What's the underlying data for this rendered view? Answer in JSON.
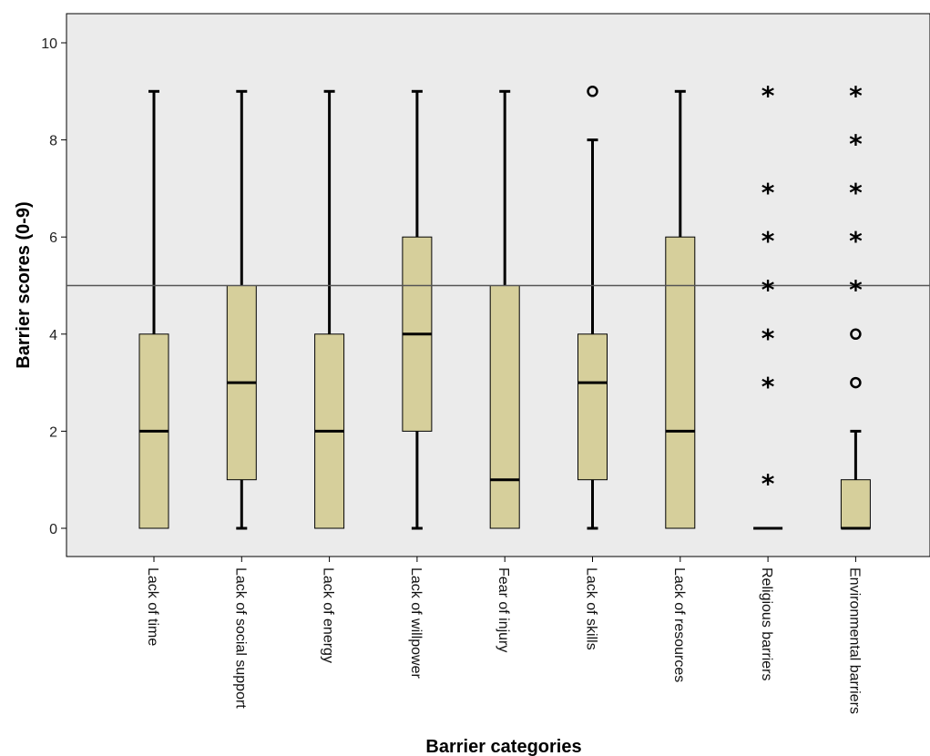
{
  "chart_data": {
    "type": "box",
    "xlabel": "Barrier categories",
    "ylabel": "Barrier scores (0-9)",
    "ylim": [
      -0.6,
      10.6
    ],
    "yticks": [
      0,
      2,
      4,
      6,
      8,
      10
    ],
    "grid": false,
    "reference_line": 5,
    "colors": {
      "plot_bg": "#ebebeb",
      "box_fill": "#d6cf9b",
      "stroke": "#000000",
      "ref_line": "#555555"
    },
    "categories": [
      {
        "label": "Lack  of time",
        "min": 0,
        "q1": 0,
        "median": 2,
        "q3": 4,
        "max": 9,
        "outliers_circle": [],
        "outliers_star": []
      },
      {
        "label": "Lack of social support",
        "min": 0,
        "q1": 1,
        "median": 3,
        "q3": 5,
        "max": 9,
        "outliers_circle": [],
        "outliers_star": []
      },
      {
        "label": "Lack of energy",
        "min": 0,
        "q1": 0,
        "median": 2,
        "q3": 4,
        "max": 9,
        "outliers_circle": [],
        "outliers_star": []
      },
      {
        "label": "Lack of willpower",
        "min": 0,
        "q1": 2,
        "median": 4,
        "q3": 6,
        "max": 9,
        "outliers_circle": [],
        "outliers_star": []
      },
      {
        "label": "Fear of injury",
        "min": 0,
        "q1": 0,
        "median": 1,
        "q3": 5,
        "max": 9,
        "outliers_circle": [],
        "outliers_star": []
      },
      {
        "label": "Lack of skills",
        "min": 0,
        "q1": 1,
        "median": 3,
        "q3": 4,
        "max": 8,
        "outliers_circle": [
          9
        ],
        "outliers_star": []
      },
      {
        "label": "Lack of resources",
        "min": 0,
        "q1": 0,
        "median": 2,
        "q3": 6,
        "max": 9,
        "outliers_circle": [],
        "outliers_star": []
      },
      {
        "label": "Religious barriers",
        "min": 0,
        "q1": 0,
        "median": 0,
        "q3": 0,
        "max": 0,
        "outliers_circle": [],
        "outliers_star": [
          1,
          3,
          4,
          5,
          6,
          7,
          9
        ]
      },
      {
        "label": "Environmental barriers",
        "min": 0,
        "q1": 0,
        "median": 0,
        "q3": 1,
        "max": 2,
        "outliers_circle": [
          3,
          4
        ],
        "outliers_star": [
          5,
          6,
          7,
          8,
          9
        ]
      }
    ]
  }
}
